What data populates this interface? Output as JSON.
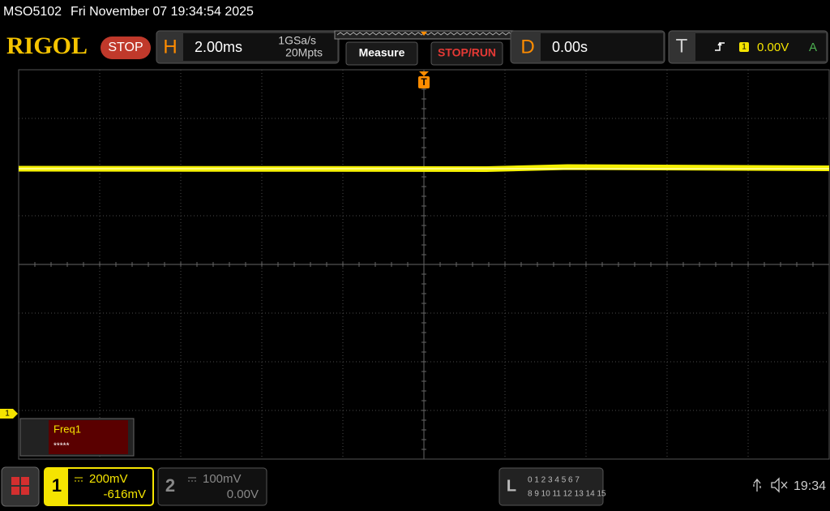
{
  "status_bar": {
    "model": "MSO5102",
    "datetime": "Fri November 07 19:34:54 2025"
  },
  "toolbar": {
    "brand": "RIGOL",
    "state": "STOP",
    "horizontal": {
      "key": "H",
      "timebase": "2.00ms",
      "sample_rate": "1GSa/s",
      "memory_depth": "20Mpts"
    },
    "buttons": [
      "Measure",
      "STOP/RUN"
    ],
    "delay": {
      "key": "D",
      "value": "0.00s"
    },
    "trigger": {
      "key": "T",
      "source": "1",
      "level": "0.00V",
      "mode": "A"
    }
  },
  "screen": {
    "trigger_marker": "T",
    "channel_marker": "1",
    "measurement": {
      "name": "Freq1",
      "value": "*****"
    }
  },
  "bottom_bar": {
    "channel1": {
      "number": "1",
      "scale": "200mV",
      "offset": "-616mV"
    },
    "channel2": {
      "number": "2",
      "scale": "100mV",
      "offset": "0.00V"
    },
    "logic": {
      "key": "L",
      "row1": "0 1 2 3 4 5 6 7",
      "row2": "8 9 10 11 12 13 14 15"
    },
    "clock": "19:34"
  }
}
